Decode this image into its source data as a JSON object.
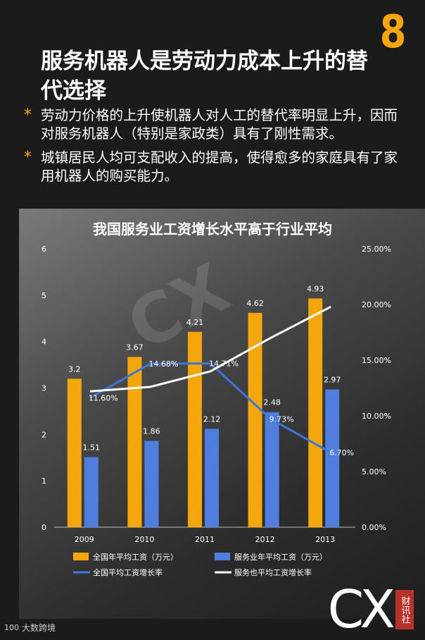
{
  "page_number": "8",
  "title": "服务机器人是劳动力成本上升的替代选择",
  "bullets": [
    "劳动力价格的上升使机器人对人工的替代率明显上升，因而对服务机器人（特别是家政类）具有了刚性需求。",
    "城镇居民人均可支配收入的提高，使得愈多的家庭具有了家用机器人的购买能力。"
  ],
  "colors": {
    "accent": "#f4a70d",
    "bar_blue": "#4f7ede",
    "line_blue": "#3a78d8",
    "line_white": "#ffffff"
  },
  "chart_data": {
    "type": "bar+line",
    "title": "我国服务业工资增长水平高于行业平均",
    "categories": [
      "2009",
      "2010",
      "2011",
      "2012",
      "2013"
    ],
    "y_left": {
      "range": [
        0,
        6
      ],
      "ticks": [
        "0",
        "1",
        "2",
        "3",
        "4",
        "5",
        "6"
      ]
    },
    "y_right": {
      "range": [
        0,
        25
      ],
      "ticks": [
        "0.00%",
        "5.00%",
        "10.00%",
        "15.00%",
        "20.00%",
        "25.00%"
      ]
    },
    "bar_series": [
      {
        "name": "全国年平均工资（万元）",
        "color": "#f4a70d",
        "values": [
          3.2,
          3.67,
          4.21,
          4.62,
          4.93
        ],
        "labels": [
          "3.2",
          "3.67",
          "4.21",
          "4.62",
          "4.93"
        ]
      },
      {
        "name": "服务业年平均工资（万元）",
        "color": "#4f7ede",
        "values": [
          1.51,
          1.86,
          2.12,
          2.48,
          2.97
        ],
        "labels": [
          "1.51",
          "1.86",
          "2.12",
          "2.48",
          "2.97"
        ]
      }
    ],
    "line_series": [
      {
        "name": "全国平均工资增长率",
        "color": "#3a78d8",
        "values": [
          11.6,
          14.68,
          14.71,
          9.73,
          6.7
        ],
        "labels": [
          "11.60%",
          "14.68%",
          "14.71%",
          "9.73%",
          "6.70%"
        ]
      },
      {
        "name": "服务也平均工资增长率",
        "color": "#ffffff",
        "values": [
          12.2,
          12.6,
          14.0,
          17.0,
          19.8
        ],
        "labels": []
      }
    ],
    "legend_position": "bottom",
    "grid": false
  },
  "watermark": "CX",
  "footer": {
    "left_text": "大数跨境",
    "logo_text": "CX",
    "logo_badge": "财讯社"
  }
}
